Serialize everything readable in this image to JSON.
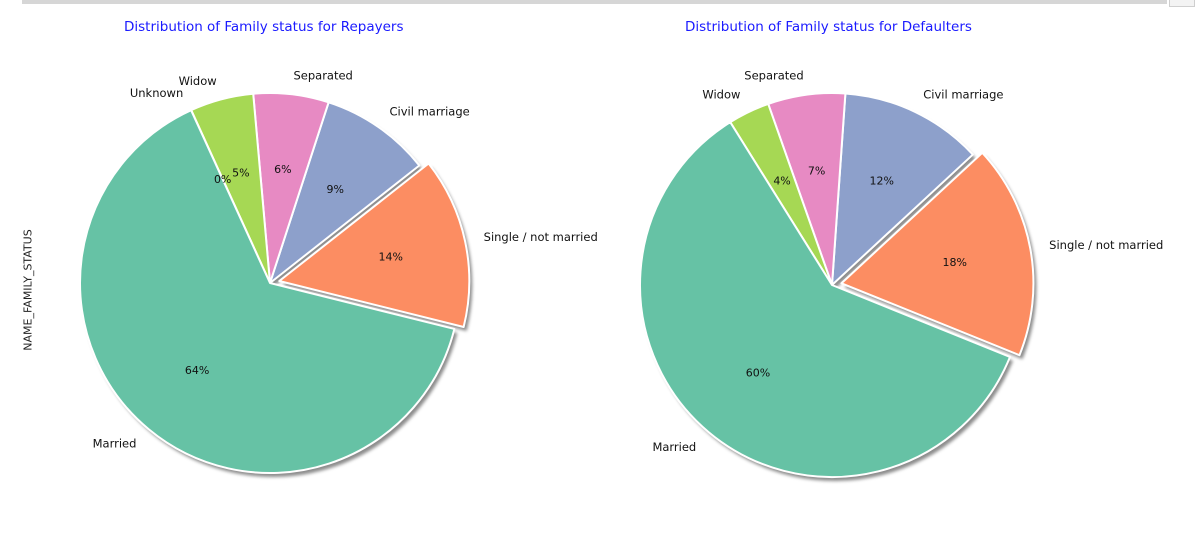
{
  "ylabel": "NAME_FAMILY_STATUS",
  "chart_data": [
    {
      "type": "pie",
      "title": "Distribution of Family status for Repayers",
      "ylabel": "NAME_FAMILY_STATUS",
      "slices": [
        {
          "label": "Single / not married",
          "value": 14.5,
          "pct_label": "14%",
          "color": "#fc8d62",
          "exploded": true
        },
        {
          "label": "Civil marriage",
          "value": 9.4,
          "pct_label": "9%",
          "color": "#8da0cb",
          "exploded": false
        },
        {
          "label": "Separated",
          "value": 6.4,
          "pct_label": "6%",
          "color": "#e78ac3",
          "exploded": false
        },
        {
          "label": "Widow",
          "value": 5.4,
          "pct_label": "5%",
          "color": "#a6d854",
          "exploded": false
        },
        {
          "label": "Unknown",
          "value": 0.01,
          "pct_label": "0%",
          "color": "#ffd92f",
          "exploded": false
        },
        {
          "label": "Married",
          "value": 64.3,
          "pct_label": "64%",
          "color": "#66c2a5",
          "exploded": false
        }
      ]
    },
    {
      "type": "pie",
      "title": "Distribution of Family status for Defaulters",
      "slices": [
        {
          "label": "Single / not married",
          "value": 18.0,
          "pct_label": "18%",
          "color": "#fc8d62",
          "exploded": true
        },
        {
          "label": "Civil marriage",
          "value": 12.0,
          "pct_label": "12%",
          "color": "#8da0cb",
          "exploded": false
        },
        {
          "label": "Separated",
          "value": 6.5,
          "pct_label": "7%",
          "color": "#e78ac3",
          "exploded": false
        },
        {
          "label": "Widow",
          "value": 3.5,
          "pct_label": "4%",
          "color": "#a6d854",
          "exploded": false
        },
        {
          "label": "Married",
          "value": 60.0,
          "pct_label": "60%",
          "color": "#66c2a5",
          "exploded": false
        }
      ]
    }
  ]
}
